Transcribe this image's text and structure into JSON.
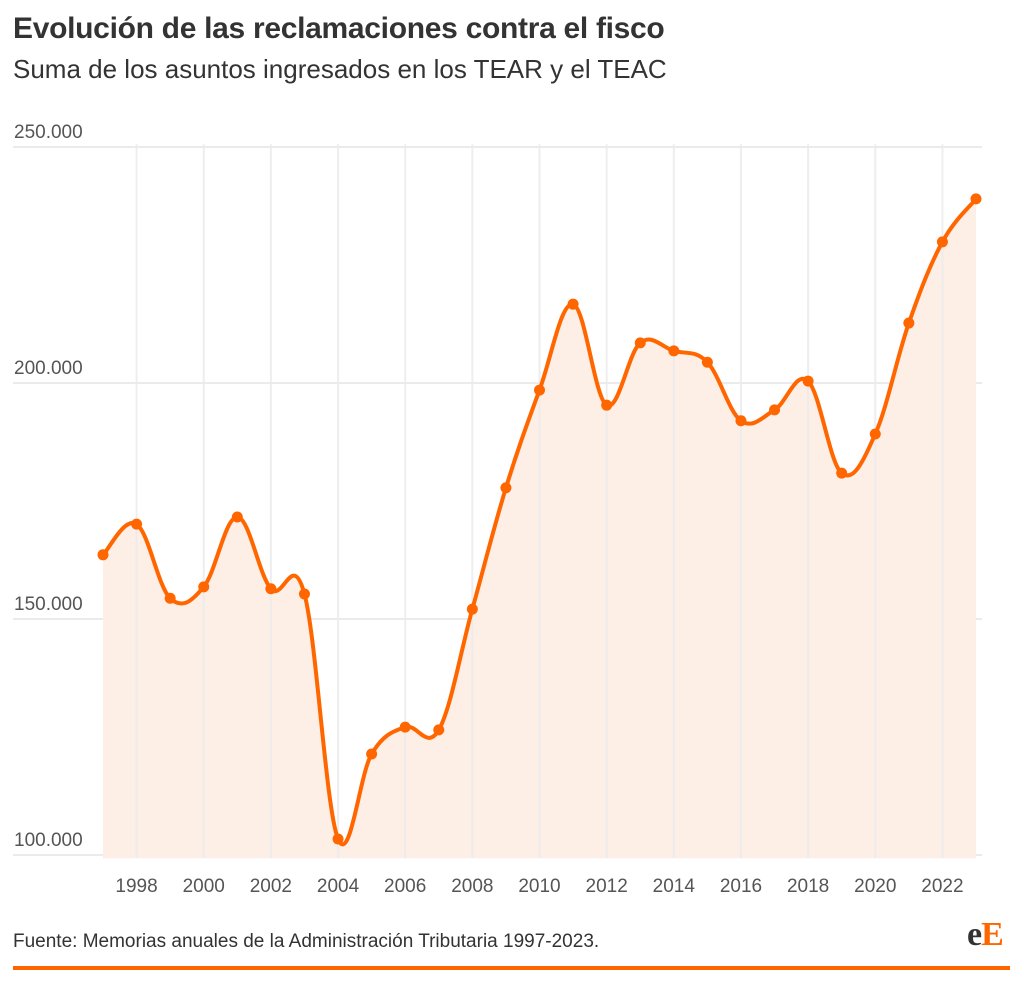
{
  "header": {
    "title": "Evolución de las reclamaciones contra el fisco",
    "subtitle": "Suma de los asuntos ingresados en los TEAR y el TEAC"
  },
  "footer": {
    "source": "Fuente: Memorias anuales de la Administración Tributaria 1997-2023.",
    "logo_lower": "e",
    "logo_upper": "E"
  },
  "colors": {
    "line": "#ff6600",
    "area_fill": "#fdeee6",
    "grid": "#ebebeb",
    "rule": "#ff6600"
  },
  "chart_data": {
    "type": "line",
    "title": "Evolución de las reclamaciones contra el fisco",
    "subtitle": "Suma de los asuntos ingresados en los TEAR y el TEAC",
    "xlabel": "",
    "ylabel": "",
    "x": [
      1997,
      1998,
      1999,
      2000,
      2001,
      2002,
      2003,
      2004,
      2005,
      2006,
      2007,
      2008,
      2009,
      2010,
      2011,
      2012,
      2013,
      2014,
      2015,
      2016,
      2017,
      2018,
      2019,
      2020,
      2021,
      2022,
      2023
    ],
    "series": [
      {
        "name": "Asuntos ingresados (TEAR + TEAC)",
        "values": [
          163600,
          170100,
          154400,
          156800,
          171600,
          156400,
          155300,
          103400,
          121400,
          127100,
          126500,
          152100,
          177800,
          198500,
          216700,
          195300,
          208500,
          206800,
          204400,
          192000,
          194300,
          200400,
          180900,
          189200,
          212700,
          229900,
          239000
        ]
      }
    ],
    "area_under_line": true,
    "markers": true,
    "smooth": true,
    "xlim": [
      1997,
      2023
    ],
    "ylim": [
      99300,
      251000
    ],
    "x_ticks": [
      1998,
      2000,
      2002,
      2004,
      2006,
      2008,
      2010,
      2012,
      2014,
      2016,
      2018,
      2020,
      2022
    ],
    "x_tick_labels": [
      "1998",
      "2000",
      "2002",
      "2004",
      "2006",
      "2008",
      "2010",
      "2012",
      "2014",
      "2016",
      "2018",
      "2020",
      "2022"
    ],
    "y_ticks": [
      100000,
      150000,
      200000,
      250000
    ],
    "y_tick_labels": [
      "100.000",
      "150.000",
      "200.000",
      "250.000"
    ],
    "grid": true,
    "legend": "none",
    "source": "Fuente: Memorias anuales de la Administración Tributaria 1997-2023."
  }
}
